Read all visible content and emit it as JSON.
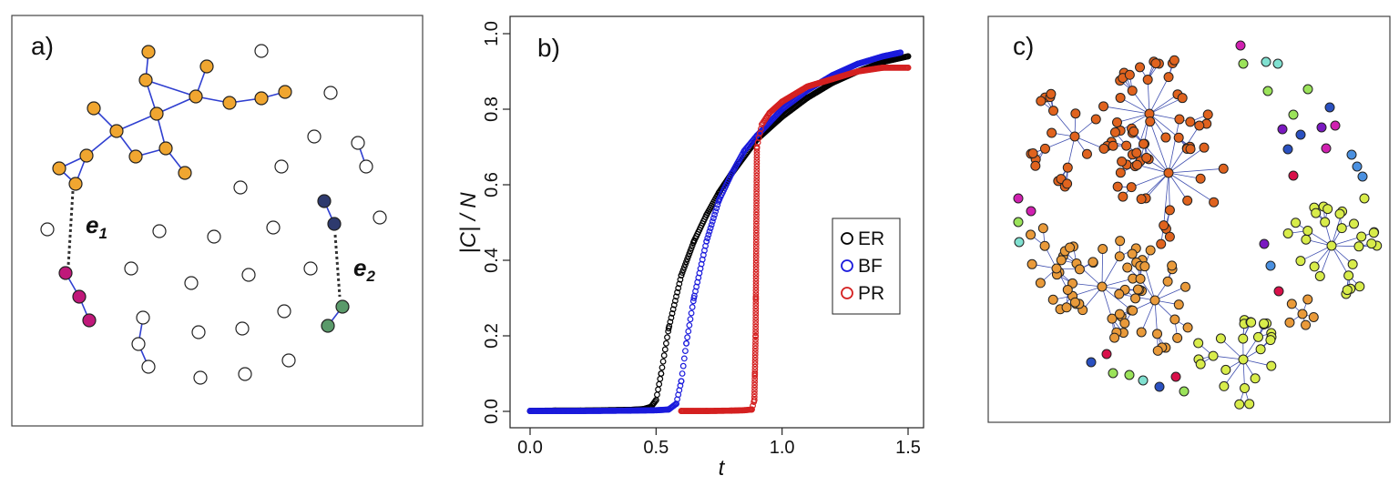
{
  "panel_a": {
    "label": "a)",
    "edge_labels": {
      "e1": {
        "base": "e",
        "sub": "1"
      },
      "e2": {
        "base": "e",
        "sub": "2"
      }
    },
    "colors": {
      "orange": "#f0a630",
      "magenta": "#c0187a",
      "navy": "#2e3a6e",
      "green": "#5a9a6a",
      "edge": "#2f3fd0",
      "empty": "#ffffff"
    }
  },
  "panel_c": {
    "label": "c)",
    "colors": {
      "orange_red": "#e0631e",
      "orange": "#e99a3a",
      "lime": "#d8ec4a",
      "light_green": "#9be35a",
      "magenta": "#d020b0",
      "purple": "#7a18c0",
      "blue": "#2a50c0",
      "crimson": "#d8104a",
      "cyan": "#80e0d0",
      "sky": "#4a90e0",
      "edge": "#4050b0"
    }
  },
  "chart_data": {
    "type": "scatter",
    "panel_label": "b)",
    "xlabel": "t",
    "ylabel": "|C| / N",
    "xlim": [
      0,
      1.5
    ],
    "ylim": [
      0,
      1.0
    ],
    "xticks": [
      "0.0",
      "0.5",
      "1.0",
      "1.5"
    ],
    "yticks": [
      "0.0",
      "0.2",
      "0.4",
      "0.6",
      "0.8",
      "1.0"
    ],
    "legend_position": "right",
    "series": [
      {
        "name": "ER",
        "color": "#000000",
        "points": [
          [
            0,
            0.001
          ],
          [
            0.1,
            0.002
          ],
          [
            0.2,
            0.002
          ],
          [
            0.3,
            0.003
          ],
          [
            0.4,
            0.004
          ],
          [
            0.45,
            0.006
          ],
          [
            0.48,
            0.012
          ],
          [
            0.5,
            0.03
          ],
          [
            0.52,
            0.1
          ],
          [
            0.55,
            0.22
          ],
          [
            0.6,
            0.36
          ],
          [
            0.65,
            0.45
          ],
          [
            0.7,
            0.52
          ],
          [
            0.75,
            0.58
          ],
          [
            0.8,
            0.63
          ],
          [
            0.9,
            0.72
          ],
          [
            1.0,
            0.78
          ],
          [
            1.1,
            0.83
          ],
          [
            1.2,
            0.87
          ],
          [
            1.3,
            0.9
          ],
          [
            1.4,
            0.925
          ],
          [
            1.5,
            0.94
          ]
        ]
      },
      {
        "name": "BF",
        "color": "#1a1adc",
        "points": [
          [
            0,
            0.001
          ],
          [
            0.2,
            0.001
          ],
          [
            0.4,
            0.002
          ],
          [
            0.5,
            0.003
          ],
          [
            0.55,
            0.005
          ],
          [
            0.58,
            0.02
          ],
          [
            0.6,
            0.08
          ],
          [
            0.62,
            0.18
          ],
          [
            0.65,
            0.3
          ],
          [
            0.7,
            0.45
          ],
          [
            0.75,
            0.56
          ],
          [
            0.8,
            0.63
          ],
          [
            0.85,
            0.69
          ],
          [
            0.9,
            0.73
          ],
          [
            1.0,
            0.8
          ],
          [
            1.1,
            0.85
          ],
          [
            1.2,
            0.89
          ],
          [
            1.3,
            0.92
          ],
          [
            1.4,
            0.94
          ],
          [
            1.47,
            0.95
          ]
        ]
      },
      {
        "name": "PR",
        "color": "#d42020",
        "points": [
          [
            0.6,
            0.001
          ],
          [
            0.7,
            0.001
          ],
          [
            0.8,
            0.002
          ],
          [
            0.85,
            0.003
          ],
          [
            0.88,
            0.005
          ],
          [
            0.89,
            0.03
          ],
          [
            0.895,
            0.2
          ],
          [
            0.9,
            0.7
          ],
          [
            0.92,
            0.76
          ],
          [
            0.95,
            0.79
          ],
          [
            1.0,
            0.82
          ],
          [
            1.1,
            0.86
          ],
          [
            1.2,
            0.88
          ],
          [
            1.3,
            0.9
          ],
          [
            1.4,
            0.91
          ],
          [
            1.5,
            0.91
          ]
        ]
      }
    ]
  }
}
